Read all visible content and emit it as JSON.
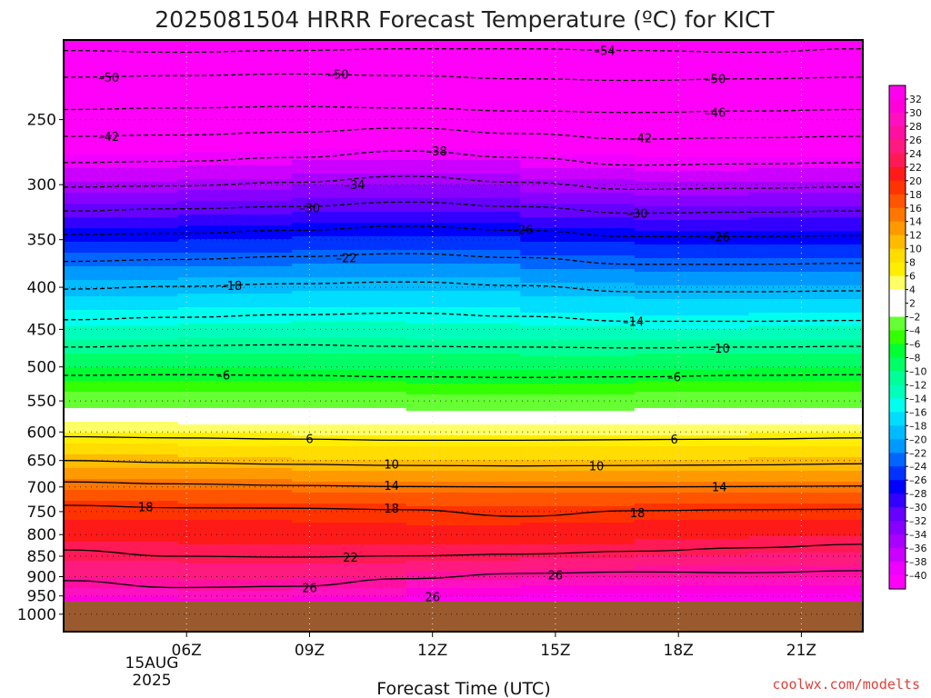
{
  "chart_data": {
    "type": "heatmap",
    "title": "2025081504 HRRR Forecast Temperature (ºC) for KICT",
    "xlabel": "Forecast Time (UTC)",
    "x_ticks": [
      "06Z",
      "09Z",
      "12Z",
      "15Z",
      "18Z",
      "21Z"
    ],
    "x_date_lines": [
      "15AUG",
      "2025"
    ],
    "x_range_hours": [
      3,
      22.5
    ],
    "y_axis": {
      "scale": "log",
      "inverted": true,
      "range": [
        200,
        1050
      ]
    },
    "y_ticks": [
      250,
      300,
      350,
      400,
      450,
      500,
      550,
      600,
      650,
      700,
      750,
      800,
      850,
      900,
      950,
      1000
    ],
    "ground_level_hpa": 965,
    "colorbar": {
      "tick_labels": [
        32,
        30,
        28,
        26,
        24,
        22,
        20,
        18,
        16,
        14,
        12,
        10,
        8,
        6,
        4,
        2,
        -2,
        -4,
        -6,
        -8,
        -10,
        -12,
        -14,
        -16,
        -18,
        -20,
        -22,
        -24,
        -26,
        -28,
        -30,
        -32,
        -34,
        -36,
        -38,
        -40
      ]
    },
    "contours": [
      {
        "value": -54,
        "pressure": [
          206,
          207,
          206,
          205,
          205,
          206,
          207,
          205
        ]
      },
      {
        "value": -50,
        "pressure": [
          222,
          221,
          220,
          221,
          223,
          224,
          223,
          222
        ]
      },
      {
        "value": -46,
        "pressure": [
          243,
          242,
          241,
          242,
          244,
          245,
          244,
          243
        ]
      },
      {
        "value": -42,
        "pressure": [
          262,
          261,
          259,
          256,
          260,
          264,
          263,
          262
        ]
      },
      {
        "value": -38,
        "pressure": [
          282,
          281,
          278,
          273,
          278,
          284,
          283,
          282
        ]
      },
      {
        "value": -34,
        "pressure": [
          302,
          301,
          298,
          293,
          298,
          304,
          303,
          302
        ]
      },
      {
        "value": -30,
        "pressure": [
          323,
          321,
          319,
          315,
          319,
          325,
          324,
          323
        ]
      },
      {
        "value": -26,
        "pressure": [
          345,
          344,
          341,
          337,
          341,
          347,
          347,
          346
        ]
      },
      {
        "value": -22,
        "pressure": [
          372,
          370,
          367,
          364,
          368,
          375,
          375,
          374
        ]
      },
      {
        "value": -18,
        "pressure": [
          402,
          399,
          396,
          394,
          398,
          405,
          405,
          404
        ]
      },
      {
        "value": -14,
        "pressure": [
          438,
          435,
          432,
          430,
          434,
          440,
          440,
          439
        ]
      },
      {
        "value": -10,
        "pressure": [
          473,
          471,
          470,
          472,
          473,
          474,
          473,
          472
        ]
      },
      {
        "value": -6,
        "pressure": [
          512,
          511,
          512,
          514,
          515,
          514,
          512,
          511
        ]
      },
      {
        "value": 6,
        "pressure": [
          608,
          610,
          612,
          614,
          614,
          613,
          612,
          610
        ]
      },
      {
        "value": 10,
        "pressure": [
          650,
          654,
          657,
          659,
          660,
          659,
          658,
          656
        ]
      },
      {
        "value": 14,
        "pressure": [
          690,
          694,
          697,
          699,
          700,
          700,
          699,
          698
        ]
      },
      {
        "value": 18,
        "pressure": [
          737,
          742,
          743,
          746,
          760,
          748,
          746,
          745
        ]
      },
      {
        "value": 22,
        "pressure": [
          835,
          850,
          852,
          849,
          845,
          838,
          830,
          822
        ]
      },
      {
        "value": 26,
        "pressure": [
          910,
          928,
          925,
          905,
          892,
          888,
          890,
          885
        ]
      }
    ],
    "contour_labels": [
      {
        "value": -54,
        "hour": 16.2,
        "pressure": 206
      },
      {
        "value": -50,
        "hour": 4.1,
        "pressure": 222
      },
      {
        "value": -50,
        "hour": 9.7,
        "pressure": 220
      },
      {
        "value": -50,
        "hour": 18.9,
        "pressure": 223
      },
      {
        "value": -46,
        "hour": 18.9,
        "pressure": 245
      },
      {
        "value": -42,
        "hour": 4.1,
        "pressure": 262
      },
      {
        "value": -42,
        "hour": 17.1,
        "pressure": 263
      },
      {
        "value": -38,
        "hour": 12.1,
        "pressure": 273
      },
      {
        "value": -34,
        "hour": 10.1,
        "pressure": 300
      },
      {
        "value": -30,
        "hour": 9.0,
        "pressure": 320
      },
      {
        "value": -30,
        "hour": 17.0,
        "pressure": 325
      },
      {
        "value": -26,
        "hour": 14.2,
        "pressure": 340
      },
      {
        "value": -26,
        "hour": 19.0,
        "pressure": 347
      },
      {
        "value": -22,
        "hour": 9.9,
        "pressure": 368
      },
      {
        "value": -18,
        "hour": 7.1,
        "pressure": 398
      },
      {
        "value": -14,
        "hour": 16.9,
        "pressure": 440
      },
      {
        "value": -10,
        "hour": 19.0,
        "pressure": 474
      },
      {
        "value": -6,
        "hour": 6.9,
        "pressure": 511
      },
      {
        "value": -6,
        "hour": 17.9,
        "pressure": 514
      },
      {
        "value": 6,
        "hour": 9.0,
        "pressure": 611
      },
      {
        "value": 6,
        "hour": 17.9,
        "pressure": 612
      },
      {
        "value": 10,
        "hour": 11.0,
        "pressure": 656
      },
      {
        "value": 10,
        "hour": 16.0,
        "pressure": 660
      },
      {
        "value": 14,
        "hour": 11.0,
        "pressure": 697
      },
      {
        "value": 14,
        "hour": 19.0,
        "pressure": 699
      },
      {
        "value": 18,
        "hour": 5.0,
        "pressure": 740
      },
      {
        "value": 18,
        "hour": 11.0,
        "pressure": 743
      },
      {
        "value": 18,
        "hour": 17.0,
        "pressure": 752
      },
      {
        "value": 22,
        "hour": 10.0,
        "pressure": 852
      },
      {
        "value": 26,
        "hour": 9.0,
        "pressure": 928
      },
      {
        "value": 26,
        "hour": 15.0,
        "pressure": 895
      },
      {
        "value": 26,
        "hour": 12.0,
        "pressure": 952
      }
    ]
  },
  "credit": "coolwx.com/modelts",
  "colors": {
    "ground": "#9b5a2e",
    "frame": "#000000",
    "freezing_band": "#ffffff",
    "credit": "#e0403a"
  }
}
